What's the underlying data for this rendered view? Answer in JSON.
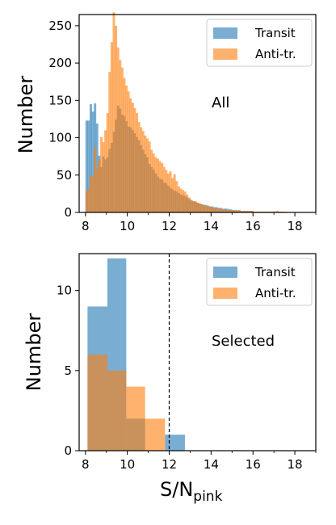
{
  "colors": {
    "transit": "#1f77b4",
    "antitr": "#ff7f0e",
    "overlap": "#c08040"
  },
  "chart_data": [
    {
      "type": "bar",
      "panel": "top",
      "annotation": "All",
      "xlabel": "",
      "ylabel": "Number",
      "xlim": [
        7.7,
        19.0
      ],
      "ylim": [
        0,
        265
      ],
      "xticks": [
        8,
        10,
        12,
        14,
        16,
        18
      ],
      "yticks": [
        0,
        50,
        100,
        150,
        200,
        250
      ],
      "legend": {
        "placement": "top-right",
        "entries": [
          "Transit",
          "Anti-tr."
        ]
      },
      "series": [
        {
          "name": "Transit",
          "bin_width": 0.1,
          "x_start": 8.0,
          "values": [
            123,
            123,
            145,
            135,
            146,
            119,
            76,
            61,
            75,
            71,
            74,
            85,
            93,
            108,
            124,
            143,
            139,
            131,
            129,
            122,
            115,
            114,
            110,
            106,
            101,
            97,
            90,
            84,
            78,
            74,
            65,
            61,
            57,
            52,
            48,
            45,
            44,
            40,
            39,
            36,
            33,
            31,
            29,
            28,
            26,
            24,
            23,
            22,
            20,
            18,
            16,
            15,
            14,
            13,
            12,
            11,
            10,
            10,
            9,
            8,
            8,
            7,
            7,
            6,
            6,
            5,
            5,
            5,
            4,
            4,
            3,
            3,
            3,
            3,
            2,
            2,
            2,
            2,
            2,
            2,
            1,
            1,
            1,
            1,
            1,
            1,
            1,
            1,
            1,
            1,
            1,
            1,
            1,
            1,
            0,
            0,
            0,
            0,
            0,
            0,
            0,
            0,
            0,
            0,
            0
          ]
        },
        {
          "name": "Anti-tr.",
          "bin_width": 0.1,
          "x_start": 8.0,
          "values": [
            29,
            32,
            50,
            48,
            88,
            60,
            70,
            101,
            94,
            110,
            133,
            188,
            228,
            268,
            250,
            221,
            204,
            194,
            180,
            170,
            162,
            153,
            147,
            140,
            133,
            121,
            114,
            109,
            103,
            99,
            95,
            84,
            79,
            74,
            72,
            69,
            66,
            61,
            57,
            52,
            55,
            46,
            51,
            42,
            35,
            32,
            30,
            28,
            24,
            20,
            17,
            15,
            15,
            13,
            12,
            11,
            10,
            9,
            8,
            8,
            7,
            6,
            6,
            5,
            5,
            4,
            4,
            3,
            3,
            3,
            3,
            3,
            2,
            2,
            2,
            2,
            2,
            2,
            2,
            2,
            1,
            1,
            1,
            1,
            1,
            1,
            1,
            1,
            1,
            1,
            1,
            2,
            1,
            1,
            1,
            1,
            0,
            0,
            0,
            0,
            0,
            0,
            0,
            0,
            0
          ]
        }
      ]
    },
    {
      "type": "bar",
      "panel": "bottom",
      "annotation": "Selected",
      "xlabel": "S/N",
      "xlabel_subscript": "pink",
      "ylabel": "Number",
      "xlim": [
        7.7,
        19.0
      ],
      "ylim": [
        0,
        12.3
      ],
      "xticks": [
        8,
        10,
        12,
        14,
        16,
        18
      ],
      "yticks": [
        0,
        5,
        10
      ],
      "vline_x": 12.0,
      "legend": {
        "placement": "top-right",
        "entries": [
          "Transit",
          "Anti-tr."
        ]
      },
      "series": [
        {
          "name": "Transit",
          "bins": [
            [
              8.1,
              9.05
            ],
            [
              9.05,
              9.95
            ],
            [
              9.95,
              10.85
            ],
            [
              10.85,
              11.8
            ],
            [
              11.8,
              12.75
            ]
          ],
          "values": [
            9,
            12,
            2,
            0,
            1
          ]
        },
        {
          "name": "Anti-tr.",
          "bins": [
            [
              8.1,
              9.05
            ],
            [
              9.05,
              9.95
            ],
            [
              9.95,
              10.85
            ],
            [
              10.85,
              11.8
            ],
            [
              11.8,
              12.75
            ]
          ],
          "values": [
            6,
            5,
            4,
            2,
            0
          ]
        }
      ]
    }
  ],
  "tick_labels": {
    "top_x": [
      "8",
      "10",
      "12",
      "14",
      "16",
      "18"
    ],
    "top_y": [
      "0",
      "50",
      "100",
      "150",
      "200",
      "250"
    ],
    "bottom_x": [
      "8",
      "10",
      "12",
      "14",
      "16",
      "18"
    ],
    "bottom_y": [
      "0",
      "5",
      "10"
    ]
  }
}
